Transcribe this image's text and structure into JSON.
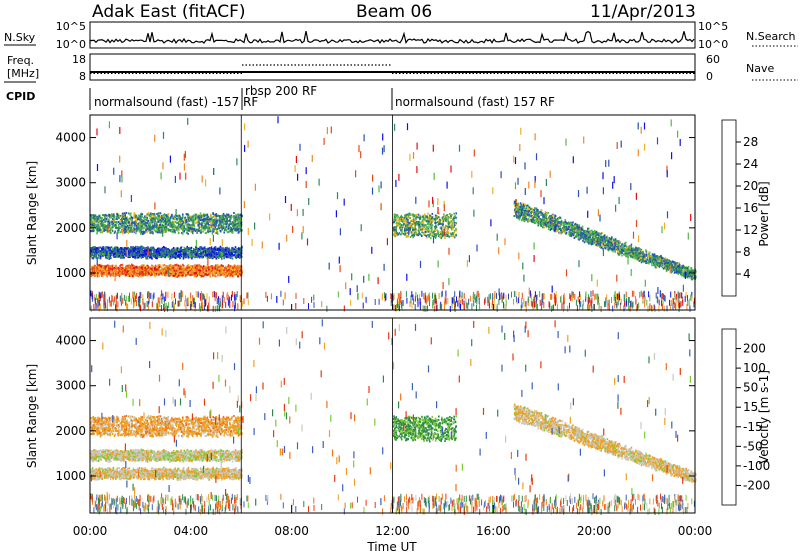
{
  "header": {
    "station": "Adak East (fitACF)",
    "beam": "Beam 06",
    "date": "11/Apr/2013"
  },
  "strips": {
    "nsky_label": "N.Sky",
    "nsearch_label": "N.Search",
    "nsky_ticks": [
      "10^5",
      "10^0"
    ],
    "nsearch_ticks": [
      "10^5",
      "10^0"
    ],
    "freq_label_line1": "Freq.",
    "freq_label_line2": "[MHz]",
    "freq_ticks": [
      "18",
      "8"
    ],
    "nave_label": "Nave",
    "nave_ticks": [
      "60",
      "0"
    ],
    "cpid_label": "CPID",
    "segments": [
      {
        "label": "normalsound (fast) -157 RF",
        "start_h": 0,
        "end_h": 6
      },
      {
        "label": "rbsp 200 RF",
        "start_h": 6,
        "end_h": 12
      },
      {
        "label": "normalsound (fast) 157 RF",
        "start_h": 12,
        "end_h": 24
      }
    ]
  },
  "panels": {
    "ylabel": "Slant Range [km]",
    "xlabel": "Time UT",
    "x_ticks": [
      "00:00",
      "04:00",
      "08:00",
      "12:00",
      "16:00",
      "20:00",
      "00:00"
    ],
    "y_ticks": [
      "1000",
      "2000",
      "3000",
      "4000"
    ],
    "power_colorbar": {
      "label": "Power [dB]",
      "ticks": [
        "4",
        "8",
        "12",
        "16",
        "20",
        "24",
        "28"
      ],
      "colors": [
        "#1010e8",
        "#2850b8",
        "#2e8a5a",
        "#52b848",
        "#f0b020",
        "#f08828",
        "#e84818",
        "#e01010"
      ]
    },
    "velocity_colorbar": {
      "label": "Velocity [m s-1]",
      "ticks": [
        "200",
        "100",
        "50",
        "15",
        "-15",
        "-50",
        "-100",
        "-200"
      ],
      "colors": [
        "#1a2ad0",
        "#3860c0",
        "#2e8a4a",
        "#7acc30",
        "#c8c8c0",
        "#f0a020",
        "#f07018",
        "#e83810",
        "#e01010"
      ]
    }
  },
  "chart_data": {
    "type": "heatmap",
    "x_range_hours": [
      0,
      24
    ],
    "y_range_km": [
      180,
      4500
    ],
    "power_range_db": [
      0,
      30
    ],
    "velocity_range": [
      -250,
      250
    ],
    "echo_regions": [
      {
        "name": "lower band early",
        "t": [
          0,
          6
        ],
        "range_km": [
          950,
          1150
        ],
        "power_db": 22,
        "velocity": -10
      },
      {
        "name": "upper band early",
        "t": [
          0,
          6
        ],
        "range_km": [
          1900,
          2300
        ],
        "power_db": 10,
        "velocity": -30
      },
      {
        "name": "mid band early",
        "t": [
          0,
          6
        ],
        "range_km": [
          1350,
          1550
        ],
        "power_db": 6,
        "velocity": 0
      },
      {
        "name": "patch noon",
        "t": [
          12,
          14.5
        ],
        "range_km": [
          1800,
          2300
        ],
        "power_db": 12,
        "velocity": 60
      },
      {
        "name": "descending band evening",
        "t": [
          16.8,
          24
        ],
        "range_km_start": [
          2250,
          2600
        ],
        "range_km_end": [
          850,
          1050
        ],
        "power_db": 10,
        "velocity": -10
      }
    ]
  }
}
